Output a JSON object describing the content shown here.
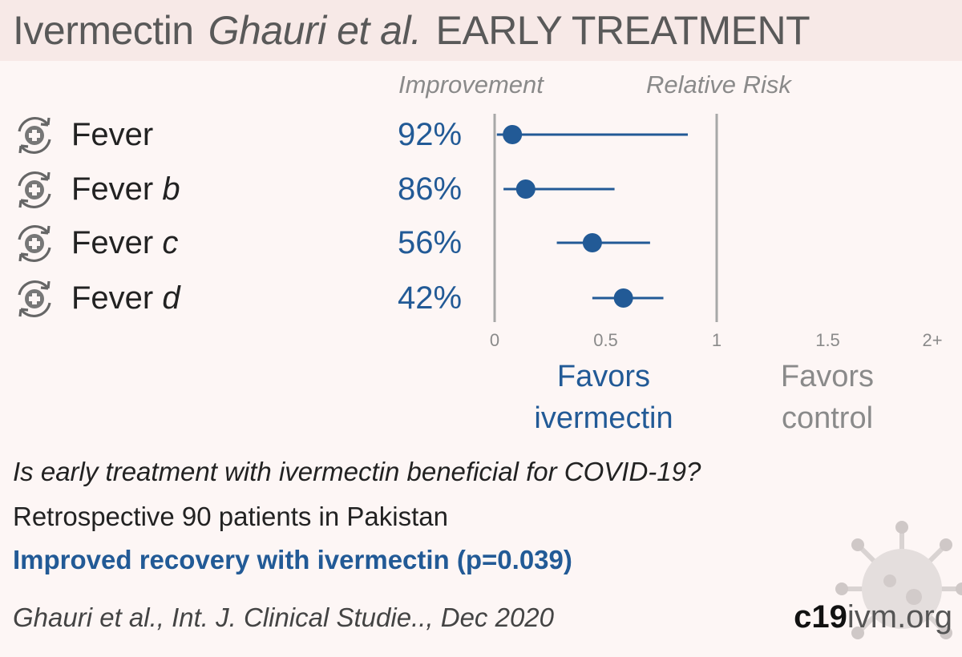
{
  "header": {
    "drug": "Ivermectin",
    "authors": "Ghauri et al.",
    "stage": "EARLY TREATMENT"
  },
  "columns": {
    "improvement": "Improvement",
    "relative_risk": "Relative Risk"
  },
  "icon": "recovery-cycle-icon",
  "chart_data": {
    "type": "forest",
    "x_label": "Relative Risk",
    "xlim": [
      0,
      2
    ],
    "x_ticks": [
      "0",
      "0.5",
      "1",
      "1.5",
      "2+"
    ],
    "x_tick_values": [
      0,
      0.5,
      1,
      1.5,
      2
    ],
    "reference_line": 1,
    "rows": [
      {
        "name": "Fever",
        "suffix": "",
        "improvement": "92%",
        "rr": 0.08,
        "ci_low": 0.01,
        "ci_high": 0.87
      },
      {
        "name": "Fever",
        "suffix": "b",
        "improvement": "86%",
        "rr": 0.14,
        "ci_low": 0.04,
        "ci_high": 0.54
      },
      {
        "name": "Fever",
        "suffix": "c",
        "improvement": "56%",
        "rr": 0.44,
        "ci_low": 0.28,
        "ci_high": 0.7
      },
      {
        "name": "Fever",
        "suffix": "d",
        "improvement": "42%",
        "rr": 0.58,
        "ci_low": 0.44,
        "ci_high": 0.76
      }
    ],
    "colors": {
      "point": "#225a96",
      "axis": "#a8a8a8",
      "muted": "#8a8a8a"
    }
  },
  "favors": {
    "left_line1": "Favors",
    "left_line2": "ivermectin",
    "right_line1": "Favors",
    "right_line2": "control"
  },
  "summary": {
    "question": "Is early treatment with ivermectin beneficial for COVID-19?",
    "design": "Retrospective 90 patients in Pakistan",
    "conclusion": "Improved recovery with ivermectin (p=0.039)",
    "citation": "Ghauri et al., Int. J. Clinical Studie.., Dec 2020"
  },
  "brand": {
    "bold": "c19",
    "rest": "ivm.org"
  }
}
